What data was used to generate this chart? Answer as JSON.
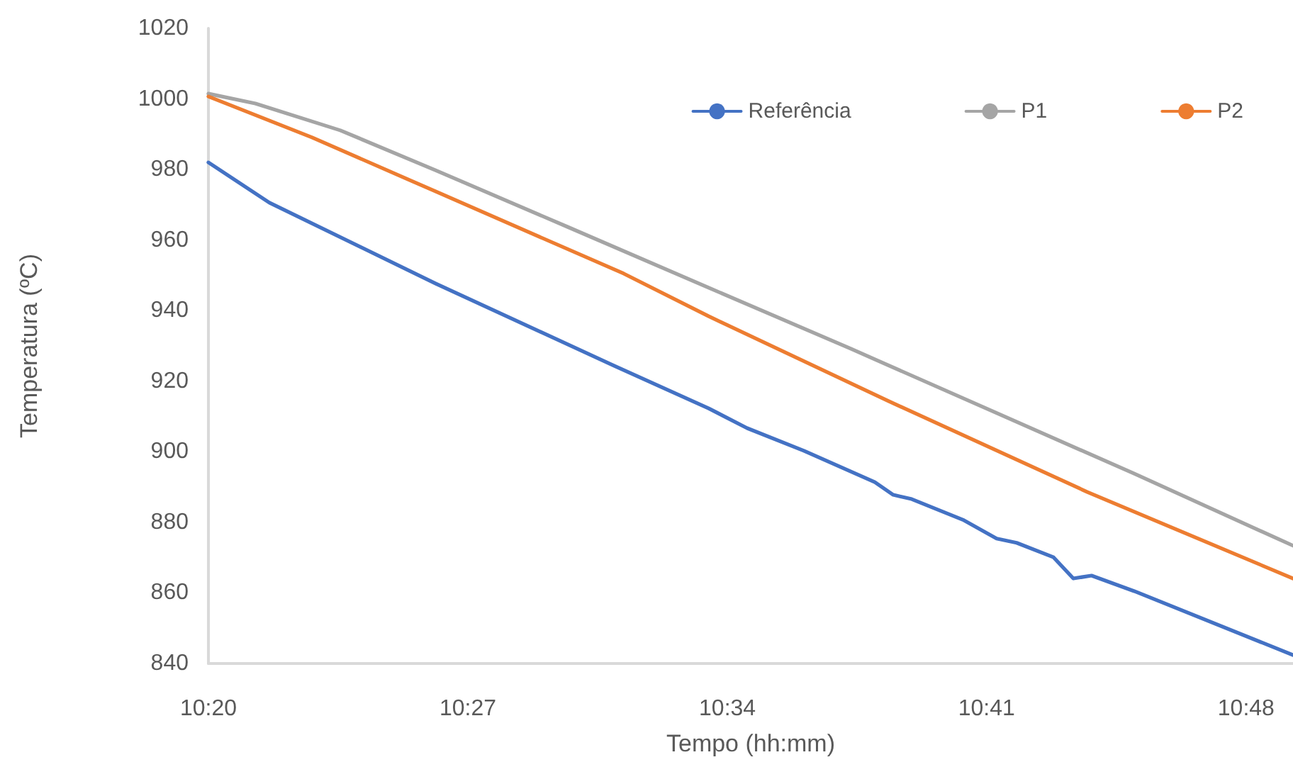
{
  "chart_data": {
    "type": "line",
    "xlabel": "Tempo (hh:mm)",
    "ylabel": "Temperatura (ºC)",
    "xlim": [
      10.3333,
      10.8211
    ],
    "ylim": [
      840,
      1020
    ],
    "xticks": [
      {
        "value": 10.3333,
        "label": "10:20"
      },
      {
        "value": 10.45,
        "label": "10:27"
      },
      {
        "value": 10.5667,
        "label": "10:34"
      },
      {
        "value": 10.6833,
        "label": "10:41"
      },
      {
        "value": 10.8,
        "label": "10:48"
      }
    ],
    "yticks": [
      840,
      860,
      880,
      900,
      920,
      940,
      960,
      980,
      1000,
      1020
    ],
    "grid": false,
    "legend": "top right",
    "marker": "none",
    "line_style": "solid",
    "series": [
      {
        "name": "Referência",
        "color": "#4472c4",
        "x": [
          10.3333,
          10.3607,
          10.4354,
          10.5157,
          10.5583,
          10.5756,
          10.6011,
          10.633,
          10.6413,
          10.6496,
          10.6731,
          10.6878,
          10.6968,
          10.7134,
          10.7223,
          10.7305,
          10.7497,
          10.8211
        ],
        "values": [
          982,
          970.6,
          947.7,
          924.4,
          912.3,
          906.7,
          900.3,
          891.4,
          887.8,
          886.6,
          880.6,
          875.4,
          874.2,
          870.1,
          864.1,
          864.9,
          860.5,
          842.4
        ]
      },
      {
        "name": "P1",
        "color": "#a5a5a5",
        "x": [
          10.3333,
          10.3544,
          10.3926,
          10.4354,
          10.4946,
          10.5583,
          10.6222,
          10.686,
          10.7497,
          10.8211
        ],
        "values": [
          1001.5,
          998.7,
          991.1,
          979.8,
          963.8,
          946.5,
          929.2,
          911.5,
          893.8,
          873.4
        ]
      },
      {
        "name": "P2",
        "color": "#ed7d31",
        "x": [
          10.3333,
          10.3799,
          10.4354,
          10.5201,
          10.5583,
          10.6394,
          10.7286,
          10.8211
        ],
        "values": [
          1000.7,
          989.1,
          973.8,
          950.5,
          938.4,
          914.3,
          888.6,
          864.1
        ]
      }
    ]
  }
}
